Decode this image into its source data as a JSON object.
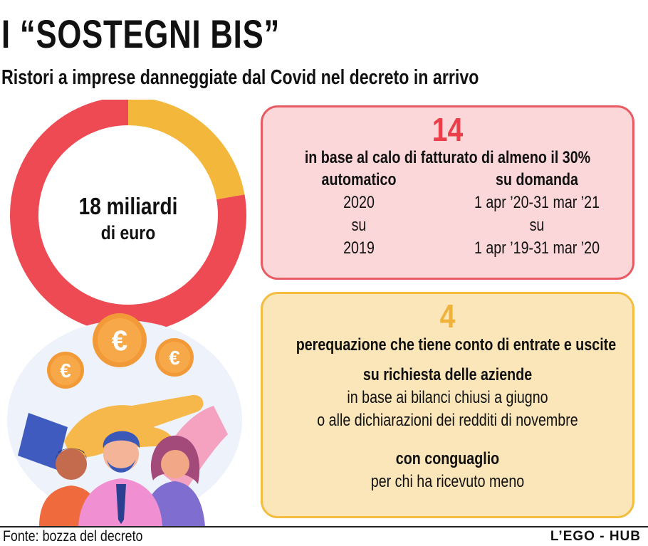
{
  "title": "I “SOSTEGNI BIS”",
  "subtitle": "Ristori a imprese danneggiate dal Covid nel decreto in arrivo",
  "chart_data": {
    "type": "pie",
    "variant": "donut",
    "center_label": {
      "amount": "18 miliardi",
      "unit": "di euro"
    },
    "total": 18,
    "slices": [
      {
        "value": 14,
        "color": "#ee4a53"
      },
      {
        "value": 4,
        "color": "#f3b73c"
      }
    ]
  },
  "boxes": [
    {
      "number": "14",
      "color": "#ea3f49",
      "condition": "in base al calo di fatturato di almeno il 30%",
      "columns": [
        {
          "header": "automatico",
          "lines": [
            "2020",
            "su",
            "2019"
          ]
        },
        {
          "header": "su domanda",
          "lines": [
            "1 apr ’20-31 mar ’21",
            "su",
            "1 apr ’19-31 mar ’20"
          ]
        }
      ]
    },
    {
      "number": "4",
      "color": "#f0b33a",
      "heading": "perequazione che tiene conto di entrate e uscite",
      "request_title": "su richiesta delle aziende",
      "request_lines": [
        "in base ai bilanci chiusi a giugno",
        "o alle dichiarazioni dei redditi di novembre"
      ],
      "adjust_title": "con conguaglio",
      "adjust_line": "per chi ha ricevuto meno"
    }
  ],
  "illustration": {
    "coin_symbol": "€",
    "icons": [
      "hand-icon",
      "euro-coin-icon",
      "people-icon"
    ]
  },
  "footer": {
    "source": "Fonte: bozza del decreto",
    "credit": "L’EGO - HUB"
  }
}
